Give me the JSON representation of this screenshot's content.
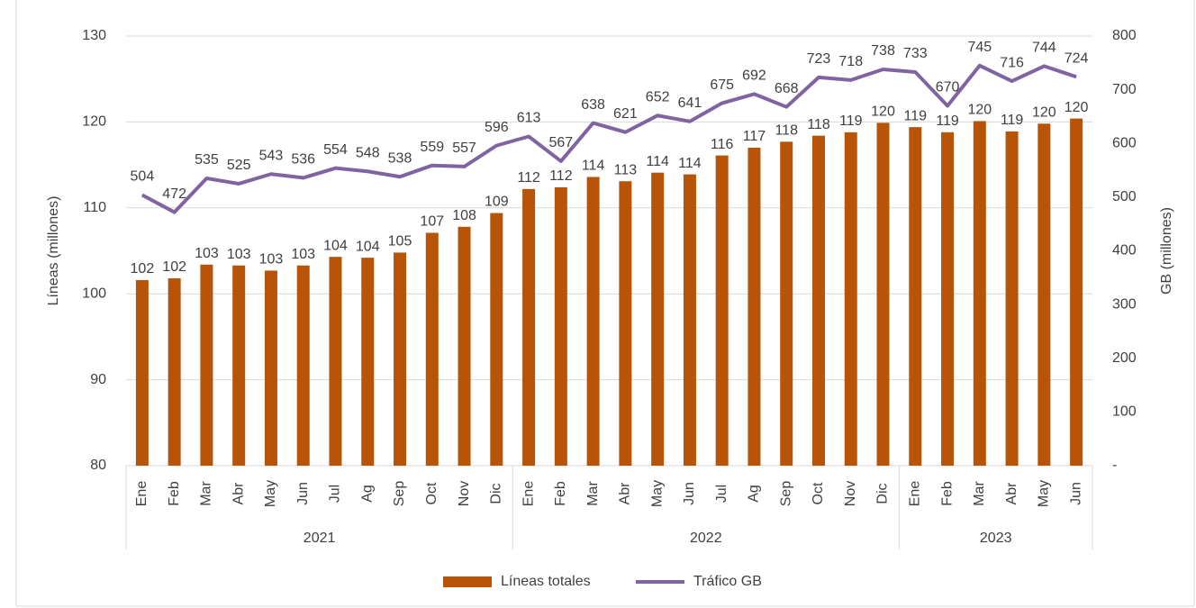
{
  "chart_data": {
    "type": "bar_line",
    "categories": [
      "Ene",
      "Feb",
      "Mar",
      "Abr",
      "May",
      "Jun",
      "Jul",
      "Ag",
      "Sep",
      "Oct",
      "Nov",
      "Dic",
      "Ene",
      "Feb",
      "Mar",
      "Abr",
      "May",
      "Jun",
      "Jul",
      "Ag",
      "Sep",
      "Oct",
      "Nov",
      "Dic",
      "Ene",
      "Feb",
      "Mar",
      "Abr",
      "May",
      "Jun"
    ],
    "groups": [
      {
        "name": "2021",
        "size": 12
      },
      {
        "name": "2022",
        "size": 12
      },
      {
        "name": "2023",
        "size": 6
      }
    ],
    "series": [
      {
        "name": "Líneas totales",
        "type": "bar",
        "color": "#b85407",
        "axis": "y",
        "values": [
          101.6,
          101.8,
          103.4,
          103.3,
          102.7,
          103.3,
          104.3,
          104.2,
          104.8,
          107.1,
          107.8,
          109.4,
          112.2,
          112.4,
          113.6,
          113.1,
          114.1,
          113.9,
          116.1,
          117.0,
          117.7,
          118.4,
          118.8,
          119.9,
          119.4,
          118.8,
          120.1,
          118.9,
          119.8,
          120.4
        ],
        "value_labels": [
          "102",
          "102",
          "103",
          "103",
          "103",
          "103",
          "104",
          "104",
          "105",
          "107",
          "108",
          "109",
          "112",
          "112",
          "114",
          "113",
          "114",
          "114",
          "116",
          "117",
          "118",
          "118",
          "119",
          "120",
          "119",
          "119",
          "120",
          "119",
          "120",
          "120"
        ]
      },
      {
        "name": "Tráfico GB",
        "type": "line",
        "color": "#8064a2",
        "axis": "y2",
        "values": [
          504,
          472,
          535,
          525,
          543,
          536,
          554,
          548,
          538,
          559,
          557,
          596,
          613,
          567,
          638,
          621,
          652,
          641,
          675,
          692,
          668,
          723,
          718,
          738,
          733,
          670,
          745,
          716,
          744,
          724
        ]
      }
    ],
    "ylabel": "Líneas (millones)",
    "y2label": "GB (millones)",
    "ylim": [
      80,
      130
    ],
    "yticks": [
      80,
      90,
      100,
      110,
      120,
      130
    ],
    "y2lim": [
      0,
      800
    ],
    "y2ticks": [
      {
        "value": 0,
        "label": "-"
      },
      100,
      200,
      300,
      400,
      500,
      600,
      700,
      800
    ],
    "grid": true,
    "legend": "bottom"
  }
}
